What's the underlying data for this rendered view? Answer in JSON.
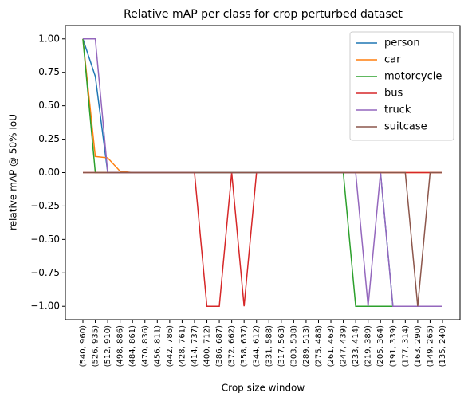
{
  "chart_data": {
    "type": "line",
    "title": "Relative mAP per class for crop perturbed dataset",
    "x_label": "Crop size window",
    "y_label": "relative mAP @ 50% IoU",
    "categories": [
      "(540, 960)",
      "(526, 935)",
      "(512, 910)",
      "(498, 886)",
      "(484, 861)",
      "(470, 836)",
      "(456, 811)",
      "(442, 786)",
      "(428, 761)",
      "(414, 737)",
      "(400, 712)",
      "(386, 687)",
      "(372, 662)",
      "(358, 637)",
      "(344, 612)",
      "(331, 588)",
      "(317, 563)",
      "(303, 538)",
      "(289, 513)",
      "(275, 488)",
      "(261, 463)",
      "(247, 439)",
      "(233, 414)",
      "(219, 389)",
      "(205, 364)",
      "(191, 339)",
      "(177, 314)",
      "(163, 290)",
      "(149, 265)",
      "(135, 240)"
    ],
    "series": [
      {
        "name": "person",
        "color": "#1f77b4",
        "values": [
          1.0,
          0.72,
          0,
          0,
          0,
          0,
          0,
          0,
          0,
          0,
          0,
          0,
          0,
          0,
          0,
          0,
          0,
          0,
          0,
          0,
          0,
          0,
          0,
          0,
          0,
          -1,
          -1,
          -1,
          -1,
          -1
        ]
      },
      {
        "name": "car",
        "color": "#ff7f0e",
        "values": [
          1.0,
          0.12,
          0.11,
          0.01,
          0,
          0,
          0,
          0,
          0,
          0,
          0,
          0,
          0,
          0,
          0,
          0,
          0,
          0,
          0,
          0,
          0,
          0,
          0,
          0,
          0,
          0,
          0,
          0,
          0,
          0
        ]
      },
      {
        "name": "motorcycle",
        "color": "#2ca02c",
        "values": [
          1.0,
          0,
          0,
          0,
          0,
          0,
          0,
          0,
          0,
          0,
          0,
          0,
          0,
          0,
          0,
          0,
          0,
          0,
          0,
          0,
          0,
          0,
          -1,
          -1,
          -1,
          -1,
          -1,
          -1,
          -1,
          -1
        ]
      },
      {
        "name": "bus",
        "color": "#d62728",
        "values": [
          0,
          0,
          0,
          0,
          0,
          0,
          0,
          0,
          0,
          0,
          -1,
          -1,
          0,
          -1,
          0,
          0,
          0,
          0,
          0,
          0,
          0,
          0,
          0,
          0,
          0,
          0,
          0,
          0,
          0,
          0
        ]
      },
      {
        "name": "truck",
        "color": "#9467bd",
        "values": [
          1.0,
          1.0,
          0,
          0,
          0,
          0,
          0,
          0,
          0,
          0,
          0,
          0,
          0,
          0,
          0,
          0,
          0,
          0,
          0,
          0,
          0,
          0,
          0,
          -1,
          0,
          -1,
          -1,
          -1,
          -1,
          -1
        ]
      },
      {
        "name": "suitcase",
        "color": "#8c564b",
        "values": [
          0,
          0,
          0,
          0,
          0,
          0,
          0,
          0,
          0,
          0,
          0,
          0,
          0,
          0,
          0,
          0,
          0,
          0,
          0,
          0,
          0,
          0,
          0,
          0,
          0,
          0,
          0,
          -1,
          0,
          0
        ]
      }
    ],
    "ylim": [
      -1.1,
      1.1
    ],
    "yticks": [
      {
        "value": 1,
        "label": "1.00"
      },
      {
        "value": 0.75,
        "label": "0.75"
      },
      {
        "value": 0.5,
        "label": "0.50"
      },
      {
        "value": 0.25,
        "label": "0.25"
      },
      {
        "value": 0,
        "label": "0.00"
      },
      {
        "value": -0.25,
        "label": "−0.25"
      },
      {
        "value": -0.5,
        "label": "−0.50"
      },
      {
        "value": -0.75,
        "label": "−0.75"
      },
      {
        "value": -1,
        "label": "−1.00"
      }
    ],
    "grid": false,
    "legend": "upper right"
  }
}
